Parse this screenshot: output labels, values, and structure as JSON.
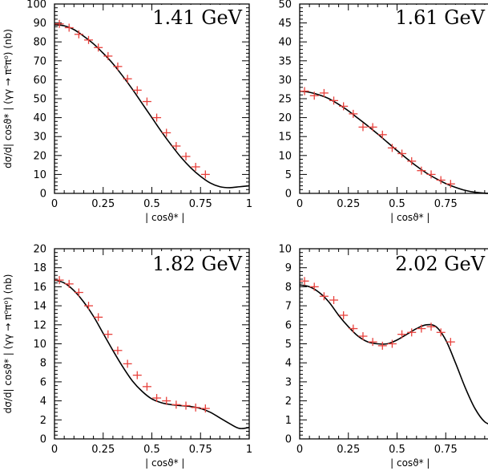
{
  "chart_data": [
    {
      "type": "scatter",
      "title": "1.41 GeV",
      "xlabel": "| cosϑ* |",
      "ylabel": "dσ/d| cosϑ* | (γγ → π⁰π⁰) (nb)",
      "xlim": [
        0,
        1
      ],
      "ylim": [
        0,
        100
      ],
      "xticks": [
        0,
        0.25,
        0.5,
        0.75,
        1
      ],
      "xtick_labels": [
        "0",
        "0.25",
        "0.5",
        "0.75",
        "1"
      ],
      "yticks": [
        0,
        10,
        20,
        30,
        40,
        50,
        60,
        70,
        80,
        90,
        100
      ],
      "ytick_labels": [
        "0",
        "10",
        "20",
        "30",
        "40",
        "50",
        "60",
        "70",
        "80",
        "90",
        "100"
      ],
      "points": {
        "x": [
          0.025,
          0.075,
          0.125,
          0.175,
          0.225,
          0.275,
          0.325,
          0.375,
          0.425,
          0.475,
          0.525,
          0.575,
          0.625,
          0.675,
          0.725,
          0.775
        ],
        "y": [
          89.5,
          87.5,
          84,
          81,
          77,
          72.5,
          67,
          60.5,
          54.5,
          48.5,
          40,
          32,
          25,
          19.5,
          14,
          10
        ]
      },
      "curve": {
        "x": [
          0,
          0.05,
          0.1,
          0.15,
          0.2,
          0.25,
          0.3,
          0.35,
          0.4,
          0.45,
          0.5,
          0.55,
          0.6,
          0.65,
          0.7,
          0.75,
          0.8,
          0.85,
          0.9,
          0.95,
          1
        ],
        "y": [
          89,
          88.5,
          86.5,
          83,
          79,
          74,
          68.5,
          62,
          55,
          47.5,
          40,
          32.5,
          25.5,
          19,
          13.5,
          9,
          5.5,
          3.5,
          3,
          3.5,
          4
        ]
      },
      "marker_color": "#e8413c",
      "curve_color": "#000000"
    },
    {
      "type": "scatter",
      "title": "1.61 GeV",
      "xlabel": "| cosϑ* |",
      "ylabel": "",
      "xlim": [
        0,
        1
      ],
      "ylim": [
        0,
        50
      ],
      "xticks": [
        0,
        0.25,
        0.5,
        0.75,
        1
      ],
      "xtick_labels": [
        "0",
        "0.25",
        "0.5",
        "0.75",
        ""
      ],
      "yticks": [
        0,
        5,
        10,
        15,
        20,
        25,
        30,
        35,
        40,
        45,
        50
      ],
      "ytick_labels": [
        "0",
        "5",
        "10",
        "15",
        "20",
        "25",
        "30",
        "35",
        "40",
        "45",
        "50"
      ],
      "points": {
        "x": [
          0.025,
          0.075,
          0.125,
          0.175,
          0.225,
          0.275,
          0.325,
          0.375,
          0.425,
          0.475,
          0.525,
          0.575,
          0.625,
          0.675,
          0.725,
          0.775
        ],
        "y": [
          27,
          25.8,
          26.5,
          24.5,
          23,
          21,
          17.5,
          17.5,
          15.5,
          12,
          10.5,
          8.5,
          6,
          5,
          3.5,
          2.5
        ]
      },
      "curve": {
        "x": [
          0,
          0.05,
          0.1,
          0.15,
          0.2,
          0.25,
          0.3,
          0.35,
          0.4,
          0.45,
          0.5,
          0.55,
          0.6,
          0.65,
          0.7,
          0.75,
          0.8,
          0.85,
          0.9,
          0.95,
          1
        ],
        "y": [
          27,
          26.7,
          26,
          25,
          23.5,
          21.8,
          19.8,
          17.8,
          15.7,
          13.5,
          11.3,
          9.2,
          7.2,
          5.4,
          3.9,
          2.6,
          1.6,
          0.8,
          0.3,
          0.05,
          0
        ]
      },
      "marker_color": "#e8413c",
      "curve_color": "#000000"
    },
    {
      "type": "scatter",
      "title": "1.82 GeV",
      "xlabel": "| cosϑ* |",
      "ylabel": "dσ/d| cosϑ* | (γγ → π⁰π⁰) (nb)",
      "xlim": [
        0,
        1
      ],
      "ylim": [
        0,
        20
      ],
      "xticks": [
        0,
        0.25,
        0.5,
        0.75,
        1
      ],
      "xtick_labels": [
        "0",
        "0.25",
        "0.5",
        "0.75",
        "1"
      ],
      "yticks": [
        0,
        2,
        4,
        6,
        8,
        10,
        12,
        14,
        16,
        18,
        20
      ],
      "ytick_labels": [
        "0",
        "2",
        "4",
        "6",
        "8",
        "10",
        "12",
        "14",
        "16",
        "18",
        "20"
      ],
      "points": {
        "x": [
          0.025,
          0.075,
          0.125,
          0.175,
          0.225,
          0.275,
          0.325,
          0.375,
          0.425,
          0.475,
          0.525,
          0.575,
          0.625,
          0.675,
          0.725,
          0.775
        ],
        "y": [
          16.7,
          16.3,
          15.4,
          14,
          12.8,
          11,
          9.3,
          7.9,
          6.7,
          5.5,
          4.3,
          4,
          3.6,
          3.5,
          3.3,
          3.2
        ]
      },
      "curve": {
        "x": [
          0,
          0.05,
          0.1,
          0.15,
          0.2,
          0.25,
          0.3,
          0.35,
          0.4,
          0.45,
          0.5,
          0.55,
          0.6,
          0.65,
          0.7,
          0.75,
          0.8,
          0.85,
          0.9,
          0.95,
          1
        ],
        "y": [
          16.7,
          16.4,
          15.6,
          14.4,
          12.9,
          11.1,
          9.3,
          7.6,
          6.1,
          5,
          4.2,
          3.8,
          3.6,
          3.5,
          3.4,
          3.2,
          2.8,
          2.2,
          1.6,
          1.1,
          1.2
        ]
      },
      "marker_color": "#e8413c",
      "curve_color": "#000000"
    },
    {
      "type": "scatter",
      "title": "2.02 GeV",
      "xlabel": "| cosϑ* |",
      "ylabel": "",
      "xlim": [
        0,
        1
      ],
      "ylim": [
        0,
        10
      ],
      "xticks": [
        0,
        0.25,
        0.5,
        0.75,
        1
      ],
      "xtick_labels": [
        "0",
        "0.25",
        "0.5",
        "0.75",
        ""
      ],
      "yticks": [
        0,
        1,
        2,
        3,
        4,
        5,
        6,
        7,
        8,
        9,
        10
      ],
      "ytick_labels": [
        "0",
        "1",
        "2",
        "3",
        "4",
        "5",
        "6",
        "7",
        "8",
        "9",
        "10"
      ],
      "points": {
        "x": [
          0.025,
          0.075,
          0.125,
          0.175,
          0.225,
          0.275,
          0.325,
          0.375,
          0.425,
          0.475,
          0.525,
          0.575,
          0.625,
          0.675,
          0.725,
          0.775
        ],
        "y": [
          8.3,
          8,
          7.5,
          7.3,
          6.5,
          5.8,
          5.4,
          5.1,
          4.9,
          5,
          5.5,
          5.6,
          5.8,
          5.9,
          5.6,
          5.1
        ]
      },
      "curve": {
        "x": [
          0,
          0.05,
          0.1,
          0.15,
          0.2,
          0.25,
          0.3,
          0.35,
          0.4,
          0.45,
          0.5,
          0.55,
          0.6,
          0.65,
          0.7,
          0.75,
          0.8,
          0.85,
          0.9,
          0.95,
          1
        ],
        "y": [
          8.1,
          8,
          7.7,
          7.2,
          6.5,
          5.9,
          5.4,
          5.1,
          5,
          5,
          5.2,
          5.5,
          5.8,
          6,
          5.9,
          5.2,
          4,
          2.7,
          1.6,
          0.9,
          0.7
        ]
      },
      "marker_color": "#e8413c",
      "curve_color": "#000000"
    }
  ]
}
